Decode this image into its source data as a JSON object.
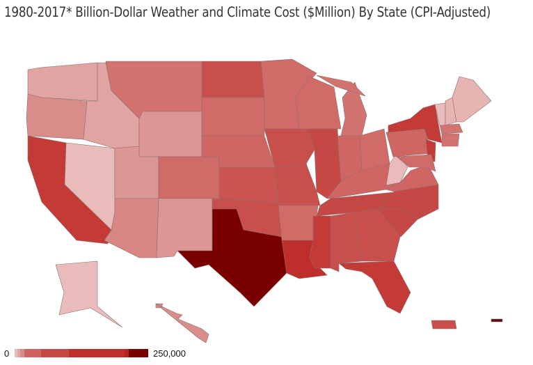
{
  "title": "1980-2017* Billion-Dollar Weather and Climate Cost ($Million) By State (CPI-Adjusted)",
  "legend": {
    "min_label": "0",
    "max_label": "250,000",
    "bins": [
      {
        "color": "#e9bcbb",
        "share": 4
      },
      {
        "color": "#e1a4a2",
        "share": 4
      },
      {
        "color": "#d88d8a",
        "share": 6
      },
      {
        "color": "#cf6361",
        "share": 24
      },
      {
        "color": "#c64845",
        "share": 40
      },
      {
        "color": "#be2e2b",
        "share": 80
      },
      {
        "color": "#b02422",
        "share": 6
      },
      {
        "color": "#7a0000",
        "share": 28
      }
    ]
  },
  "state_fills": {
    "WA": "#e1a4a2",
    "OR": "#d88d8a",
    "CA": "#c43a37",
    "NV": "#e9bcbb",
    "ID": "#e1a4a2",
    "MT": "#d27370",
    "WY": "#dc9693",
    "UT": "#dc9693",
    "AZ": "#d88683",
    "CO": "#d06b68",
    "NM": "#dc9693",
    "ND": "#c94f4c",
    "SD": "#d06b68",
    "NE": "#cf6663",
    "KS": "#c95450",
    "OK": "#c94f4c",
    "TX": "#7a0000",
    "MN": "#d06b68",
    "IA": "#c94f4c",
    "MO": "#c94f4c",
    "AR": "#d06b68",
    "LA": "#be2e2b",
    "WI": "#d06b68",
    "IL": "#c64845",
    "MI": "#d27370",
    "MIU": "#d27370",
    "IN": "#cf6663",
    "OH": "#d06b68",
    "KY": "#cf6663",
    "TN": "#c64845",
    "MS": "#c43a37",
    "AL": "#c94f4c",
    "GA": "#c94f4c",
    "FL": "#c43a37",
    "SC": "#c64845",
    "NC": "#c64845",
    "VA": "#cf6663",
    "WV": "#e9bcbb",
    "PA": "#cf6663",
    "NY": "#c43a37",
    "NJ": "#c43a37",
    "MD": "#d06b68",
    "VT": "#e9bcbb",
    "NH": "#e6b4b2",
    "ME": "#e6b4b2",
    "MA": "#d27370",
    "CT": "#d27370",
    "AK": "#e9bcbb",
    "HI": "#d88d8a",
    "PR": "#c94f4c",
    "VI": "#5a1010"
  }
}
